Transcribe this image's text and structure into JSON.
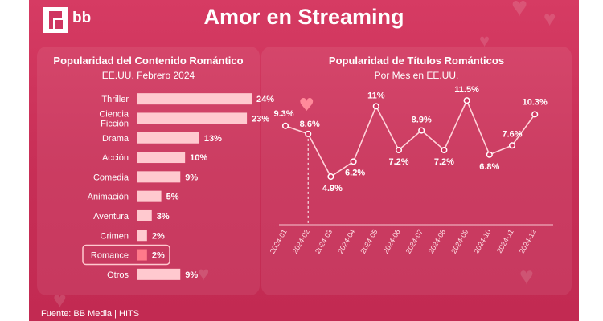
{
  "brand": {
    "logo_text": "bb"
  },
  "title": "Amor en Streaming",
  "colors": {
    "background": "#cf3560",
    "bar": "#ffc9cf",
    "highlight_bar": "#ff7a8a",
    "text": "#ffffff",
    "heart": "#ff8a9a"
  },
  "left": {
    "title": "Popularidad del Contenido Romántico",
    "subtitle": "EE.UU. Febrero 2024"
  },
  "right": {
    "title": "Popularidad de Títulos Románticos",
    "subtitle": "Por Mes en EE.UU."
  },
  "source": "Fuente: BB Media | HITS",
  "chart_data": [
    {
      "type": "bar",
      "orientation": "horizontal",
      "title": "Popularidad del Contenido Romántico",
      "subtitle": "EE.UU. Febrero 2024",
      "categories": [
        "Thriller",
        "Ciencia Ficción",
        "Drama",
        "Acción",
        "Comedia",
        "Animación",
        "Aventura",
        "Crimen",
        "Romance",
        "Otros"
      ],
      "category_lines": [
        [
          "Thriller"
        ],
        [
          "Ciencia",
          "Ficción"
        ],
        [
          "Drama"
        ],
        [
          "Acción"
        ],
        [
          "Comedia"
        ],
        [
          "Animación"
        ],
        [
          "Aventura"
        ],
        [
          "Crimen"
        ],
        [
          "Romance"
        ],
        [
          "Otros"
        ]
      ],
      "values": [
        24,
        23,
        13,
        10,
        9,
        5,
        3,
        2,
        2,
        9
      ],
      "data_labels": [
        "24%",
        "23%",
        "13%",
        "10%",
        "9%",
        "5%",
        "3%",
        "2%",
        "2%",
        "9%"
      ],
      "highlight": "Romance",
      "unit": "%"
    },
    {
      "type": "line",
      "title": "Popularidad de Títulos Románticos",
      "subtitle": "Por Mes en EE.UU.",
      "x": [
        "2024-01",
        "2024-02",
        "2024-03",
        "2024-04",
        "2024-05",
        "2024-06",
        "2024-07",
        "2024-08",
        "2024-09",
        "2024-10",
        "2024-11",
        "2024-12"
      ],
      "y": [
        9.3,
        8.6,
        4.9,
        6.2,
        11,
        7.2,
        8.9,
        7.2,
        11.5,
        6.8,
        7.6,
        10.3
      ],
      "data_labels": [
        "9.3%",
        "8.6%",
        "4.9%",
        "6.2%",
        "11%",
        "7.2%",
        "8.9%",
        "7.2%",
        "11.5%",
        "6.8%",
        "7.6%",
        "10.3%"
      ],
      "highlight_x": "2024-02",
      "unit": "%",
      "grid": false
    }
  ]
}
